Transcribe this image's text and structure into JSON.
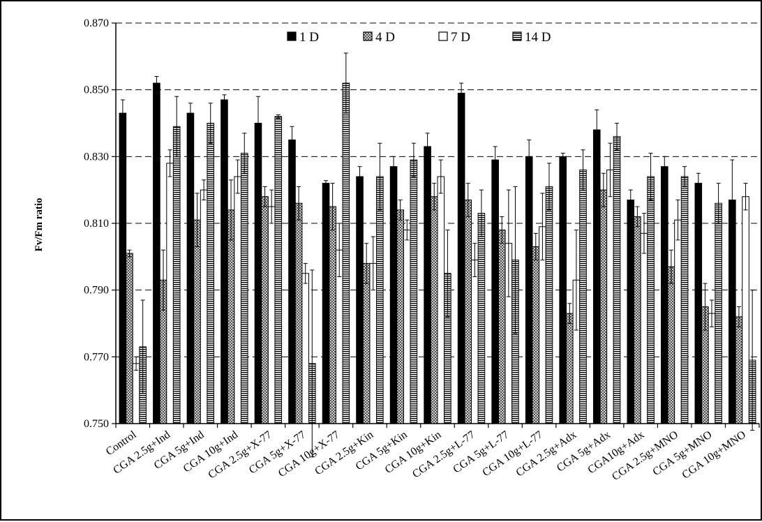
{
  "chart_data": {
    "type": "bar",
    "ylabel": "Fv/Fm ratio",
    "ylim": [
      0.75,
      0.87
    ],
    "yticks": [
      "0.750",
      "0.770",
      "0.790",
      "0.810",
      "0.830",
      "0.850",
      "0.870"
    ],
    "grid": "dashed horizontal gridlines at major ticks",
    "legend_position": "top",
    "categories": [
      "Control",
      "CGA 2.5g+Ind",
      "CGA 5g+Ind",
      "CGA 10g+Ind",
      "CGA 2.5g+X-77",
      "CGA 5g+X-77",
      "CGA 10g+X-77",
      "CGA 2.5g+Kin",
      "CGA 5g+Kin",
      "CGA 10g+Kin",
      "CGA 2.5g+L-77",
      "CGA 5g+L-77",
      "CGA 10g+L-77",
      "CGA 2.5g+Adx",
      "CGA 5g+Adx",
      "CGA10g+Adx",
      "CGA 2.5g+MNO",
      "CGA 5g+MNO",
      "CGA 10g+MNO"
    ],
    "series": [
      {
        "name": "1 D",
        "pattern": "solid",
        "color": "#000000",
        "values": [
          0.843,
          0.852,
          0.843,
          0.847,
          0.84,
          0.835,
          0.822,
          0.824,
          0.827,
          0.833,
          0.849,
          0.829,
          0.83,
          0.83,
          0.838,
          0.817,
          0.827,
          0.822,
          0.817
        ],
        "errors": [
          0.004,
          0.002,
          0.003,
          0.0015,
          0.008,
          0.004,
          0.0008,
          0.003,
          0.003,
          0.004,
          0.003,
          0.004,
          0.005,
          0.001,
          0.006,
          0.003,
          0.003,
          0.003,
          0.012
        ]
      },
      {
        "name": "4 D",
        "pattern": "crosshatch",
        "color": "#000000",
        "values": [
          0.801,
          0.793,
          0.811,
          0.814,
          0.818,
          0.816,
          0.815,
          0.798,
          0.814,
          0.818,
          0.817,
          0.808,
          0.803,
          0.783,
          0.82,
          0.812,
          0.797,
          0.785,
          0.782
        ],
        "errors": [
          0.001,
          0.009,
          0.008,
          0.009,
          0.003,
          0.005,
          0.007,
          0.006,
          0.003,
          0.004,
          0.005,
          0.004,
          0.004,
          0.003,
          0.005,
          0.003,
          0.005,
          0.007,
          0.003
        ]
      },
      {
        "name": "7 D",
        "pattern": "open",
        "color": "#ffffff",
        "values": [
          0.768,
          0.828,
          0.82,
          0.824,
          0.815,
          0.795,
          0.802,
          0.798,
          0.808,
          0.824,
          0.799,
          0.804,
          0.809,
          0.793,
          0.826,
          0.807,
          0.811,
          0.783,
          0.818
        ],
        "errors": [
          0.002,
          0.004,
          0.003,
          0.005,
          0.005,
          0.003,
          0.008,
          0.008,
          0.003,
          0.005,
          0.005,
          0.016,
          0.01,
          0.015,
          0.008,
          0.006,
          0.006,
          0.004,
          0.004
        ]
      },
      {
        "name": "14 D",
        "pattern": "horizontal-stripes",
        "color": "#000000",
        "values": [
          0.773,
          0.839,
          0.84,
          0.831,
          0.842,
          0.768,
          0.852,
          0.824,
          0.829,
          0.795,
          0.813,
          0.799,
          0.821,
          0.826,
          0.836,
          0.824,
          0.824,
          0.816,
          0.769
        ],
        "errors": [
          0.014,
          0.009,
          0.006,
          0.006,
          0.0005,
          0.028,
          0.009,
          0.01,
          0.005,
          0.013,
          0.007,
          0.022,
          0.007,
          0.006,
          0.004,
          0.007,
          0.003,
          0.006,
          0.021
        ]
      }
    ]
  }
}
